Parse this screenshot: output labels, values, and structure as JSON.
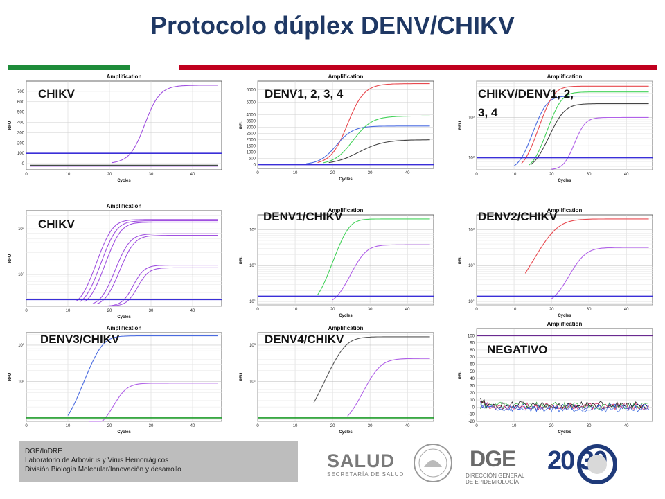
{
  "title": "Protocolo dúplex DENV/CHIKV",
  "colors": {
    "title": "#1f3864",
    "green": "#1e8c3a",
    "red": "#c0001e"
  },
  "footer": {
    "line1": "DGE/InDRE",
    "line2": "Laboratorio de Arbovirus y Virus Hemorrágicos",
    "line3": "División Biología Molecular/Innovación y desarrollo"
  },
  "logos": {
    "salud": "SALUD",
    "salud_sub": "SECRETARÍA DE SALUD",
    "dge": "DGE",
    "dge_sub1": "DIRECCIÓN GENERAL",
    "dge_sub2": "DE EPIDEMIOLOGÍA",
    "y2030": "20 30"
  },
  "chart_data": [
    {
      "type": "line",
      "label": "CHIKV",
      "title": "Amplification",
      "xlabel": "Cycles",
      "ylabel": "RFU",
      "scale": "linear",
      "xlim": [
        0,
        47
      ],
      "ylim": [
        -60,
        800
      ],
      "xticks": [
        0,
        10,
        20,
        30,
        40
      ],
      "yticks": [
        0,
        100,
        200,
        300,
        400,
        500,
        600,
        700
      ],
      "threshold": 100,
      "series": [
        {
          "color": "#a050e0",
          "kind": "sig",
          "ct": 28.5,
          "base": 0,
          "plateau": 760,
          "k": 0.55
        },
        {
          "color": "#2a8a4a",
          "kind": "flat",
          "level": -20
        },
        {
          "color": "#a050e0",
          "kind": "flat",
          "level": -25
        },
        {
          "color": "#444444",
          "kind": "flat",
          "level": -15
        }
      ]
    },
    {
      "type": "line",
      "label": "DENV1, 2, 3, 4",
      "title": "Amplification",
      "xlabel": "Cycles",
      "ylabel": "RFU",
      "scale": "linear",
      "xlim": [
        0,
        47
      ],
      "ylim": [
        -300,
        6700
      ],
      "xticks": [
        0,
        10,
        20,
        30,
        40
      ],
      "yticks": [
        0,
        500,
        1000,
        1500,
        2000,
        2500,
        3000,
        3500,
        4000,
        5000,
        6000
      ],
      "threshold": 0,
      "series": [
        {
          "color": "#e8494f",
          "kind": "sig",
          "ct": 24,
          "base": 0,
          "plateau": 6500,
          "k": 0.45
        },
        {
          "color": "#4a6be0",
          "kind": "sig",
          "ct": 21,
          "base": 0,
          "plateau": 3100,
          "k": 0.45
        },
        {
          "color": "#44d25a",
          "kind": "sig",
          "ct": 25.5,
          "base": 0,
          "plateau": 3900,
          "k": 0.4
        },
        {
          "color": "#444444",
          "kind": "sig",
          "ct": 27,
          "base": 0,
          "plateau": 2000,
          "k": 0.3
        },
        {
          "color": "#7a30d0",
          "kind": "flat",
          "level": 0
        }
      ]
    },
    {
      "type": "line",
      "label": "CHIKV/DENV1, 2, 3, 4",
      "title": "Amplification",
      "xlabel": "Cycles",
      "ylabel": "RFU",
      "scale": "log",
      "xlim": [
        0,
        47
      ],
      "ylim": [
        50,
        8000
      ],
      "xticks": [
        0,
        10,
        20,
        30,
        40
      ],
      "ytick_labels": [
        "10^2",
        "10^3"
      ],
      "threshold": 100,
      "series": [
        {
          "color": "#4a6be0",
          "kind": "sig",
          "ct": 18,
          "base": 50,
          "plateau": 3400,
          "k": 0.7
        },
        {
          "color": "#e8494f",
          "kind": "sig",
          "ct": 20,
          "base": 50,
          "plateau": 6000,
          "k": 0.7
        },
        {
          "color": "#44d25a",
          "kind": "sig",
          "ct": 22,
          "base": 50,
          "plateau": 4300,
          "k": 0.7
        },
        {
          "color": "#444444",
          "kind": "sig",
          "ct": 22.5,
          "base": 50,
          "plateau": 2200,
          "k": 0.6
        },
        {
          "color": "#b060e8",
          "kind": "sig",
          "ct": 28,
          "base": 50,
          "plateau": 1000,
          "k": 0.8
        }
      ]
    },
    {
      "type": "line",
      "label": "CHIKV",
      "title": "Amplification",
      "xlabel": "Cycles",
      "ylabel": "RFU",
      "scale": "log",
      "xlim": [
        0,
        47
      ],
      "ylim": [
        20,
        2500
      ],
      "xticks": [
        0,
        10,
        20,
        30,
        40
      ],
      "ytick_labels": [
        "10^2",
        "10^3"
      ],
      "threshold": 28,
      "series": [
        {
          "color": "#a050e0",
          "kind": "sig",
          "ct": 20,
          "base": 20,
          "plateau": 1600,
          "k": 0.7
        },
        {
          "color": "#a050e0",
          "kind": "sig",
          "ct": 21,
          "base": 20,
          "plateau": 1500,
          "k": 0.7
        },
        {
          "color": "#a050e0",
          "kind": "sig",
          "ct": 22,
          "base": 20,
          "plateau": 1400,
          "k": 0.7
        },
        {
          "color": "#a050e0",
          "kind": "sig",
          "ct": 24,
          "base": 20,
          "plateau": 780,
          "k": 0.7
        },
        {
          "color": "#a050e0",
          "kind": "sig",
          "ct": 25,
          "base": 20,
          "plateau": 720,
          "k": 0.7
        },
        {
          "color": "#a050e0",
          "kind": "sig",
          "ct": 27,
          "base": 20,
          "plateau": 160,
          "k": 0.8
        },
        {
          "color": "#a050e0",
          "kind": "sig",
          "ct": 28,
          "base": 20,
          "plateau": 140,
          "k": 0.8
        }
      ]
    },
    {
      "type": "line",
      "label": "DENV1/CHIKV",
      "title": "Amplification",
      "xlabel": "Cycles",
      "ylabel": "RFU",
      "scale": "log",
      "xlim": [
        0,
        47
      ],
      "ylim": [
        8,
        2600
      ],
      "xticks": [
        0,
        10,
        20,
        30,
        40
      ],
      "ytick_labels": [
        "10^1",
        "10^2",
        "10^3"
      ],
      "threshold": 14,
      "series": [
        {
          "color": "#44d25a",
          "kind": "sig",
          "ct": 24,
          "base": 8,
          "plateau": 2000,
          "k": 0.7
        },
        {
          "color": "#b060e8",
          "kind": "sig",
          "ct": 28,
          "base": 8,
          "plateau": 380,
          "k": 0.6
        }
      ]
    },
    {
      "type": "line",
      "label": "DENV2/CHIKV",
      "title": "Amplification",
      "xlabel": "Cycles",
      "ylabel": "RFU",
      "scale": "log",
      "xlim": [
        0,
        47
      ],
      "ylim": [
        8,
        2600
      ],
      "xticks": [
        0,
        10,
        20,
        30,
        40
      ],
      "ytick_labels": [
        "10^1",
        "10^2",
        "10^3"
      ],
      "threshold": 14,
      "series": [
        {
          "color": "#e8494f",
          "kind": "sig",
          "ct": 21,
          "base": 8,
          "plateau": 2000,
          "k": 0.45
        },
        {
          "color": "#b060e8",
          "kind": "sig",
          "ct": 28,
          "base": 8,
          "plateau": 320,
          "k": 0.55
        }
      ]
    },
    {
      "type": "line",
      "label": "DENV3/CHIKV",
      "title": "Amplification",
      "xlabel": "Cycles",
      "ylabel": "RFU",
      "scale": "log",
      "xlim": [
        0,
        47
      ],
      "ylim": [
        8,
        2200
      ],
      "xticks": [
        0,
        10,
        20,
        30,
        40
      ],
      "ytick_labels": [
        "10^2",
        "10^3"
      ],
      "threshold": 10,
      "series": [
        {
          "color": "#4a6be0",
          "kind": "sig",
          "ct": 18,
          "base": 5,
          "plateau": 1800,
          "k": 0.7
        },
        {
          "color": "#b060e8",
          "kind": "sig",
          "ct": 23,
          "base": 5,
          "plateau": 90,
          "k": 0.7
        }
      ]
    },
    {
      "type": "line",
      "label": "DENV4/CHIKV",
      "title": "Amplification",
      "xlabel": "Cycles",
      "ylabel": "RFU",
      "scale": "log",
      "xlim": [
        0,
        47
      ],
      "ylim": [
        8,
        2200
      ],
      "xticks": [
        0,
        10,
        20,
        30,
        40
      ],
      "ytick_labels": [
        "10^2",
        "10^3"
      ],
      "threshold": 10,
      "series": [
        {
          "color": "#555555",
          "kind": "sig",
          "ct": 23,
          "base": 6,
          "plateau": 1700,
          "k": 0.55
        },
        {
          "color": "#b060e8",
          "kind": "sig",
          "ct": 32,
          "base": 6,
          "plateau": 430,
          "k": 0.55
        }
      ]
    },
    {
      "type": "line",
      "label": "NEGATIVO",
      "title": "Amplification",
      "xlabel": "Cycles",
      "ylabel": "RFU",
      "scale": "linear",
      "xlim": [
        0,
        47
      ],
      "ylim": [
        -20,
        110
      ],
      "xticks": [
        0,
        10,
        20,
        30,
        40
      ],
      "yticks": [
        -20,
        -10,
        0,
        10,
        20,
        30,
        40,
        50,
        60,
        70,
        80,
        90,
        100
      ],
      "threshold": 100,
      "series": [
        {
          "color": "#2030c0",
          "kind": "noise",
          "level": 0
        },
        {
          "color": "#30b040",
          "kind": "noise",
          "level": 2
        },
        {
          "color": "#d02060",
          "kind": "noise",
          "level": 1
        },
        {
          "color": "#111111",
          "kind": "noise",
          "level": 3
        },
        {
          "color": "#3a6ae0",
          "kind": "noise",
          "level": -2
        }
      ]
    }
  ]
}
